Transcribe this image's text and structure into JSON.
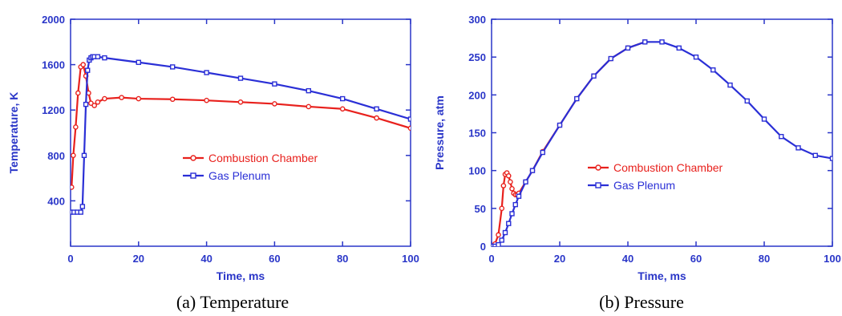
{
  "chart_data": [
    {
      "type": "line",
      "caption": "(a) Temperature",
      "xlabel": "Time, ms",
      "ylabel": "Temperature, K",
      "xlim": [
        0,
        100
      ],
      "ylim": [
        0,
        2000
      ],
      "xticks": [
        0,
        20,
        40,
        60,
        80,
        100
      ],
      "yticks": [
        400,
        800,
        1200,
        1600,
        2000
      ],
      "legend_position": "center",
      "series": [
        {
          "name": "Combustion Chamber",
          "color": "#e8211d",
          "marker": "circle",
          "x": [
            0.3,
            0.8,
            1.5,
            2.2,
            3,
            3.7,
            4.5,
            5.3,
            6,
            7,
            8,
            10,
            15,
            20,
            30,
            40,
            50,
            60,
            70,
            80,
            90,
            100
          ],
          "y": [
            520,
            800,
            1050,
            1350,
            1580,
            1600,
            1500,
            1350,
            1260,
            1240,
            1270,
            1300,
            1310,
            1300,
            1295,
            1285,
            1270,
            1255,
            1230,
            1210,
            1130,
            1040
          ]
        },
        {
          "name": "Gas Plenum",
          "color": "#2a2fd6",
          "marker": "square",
          "x": [
            0,
            1,
            2,
            3,
            3.5,
            4,
            4.5,
            5,
            5.5,
            6,
            6.5,
            7,
            8,
            10,
            20,
            30,
            40,
            50,
            60,
            70,
            80,
            90,
            100
          ],
          "y": [
            300,
            300,
            300,
            300,
            350,
            800,
            1250,
            1550,
            1640,
            1660,
            1670,
            1670,
            1670,
            1660,
            1620,
            1580,
            1530,
            1480,
            1430,
            1370,
            1300,
            1210,
            1120
          ]
        }
      ]
    },
    {
      "type": "line",
      "caption": "(b) Pressure",
      "xlabel": "Time, ms",
      "ylabel": "Pressure, atm",
      "xlim": [
        0,
        100
      ],
      "ylim": [
        0,
        300
      ],
      "xticks": [
        0,
        20,
        40,
        60,
        80,
        100
      ],
      "yticks": [
        0,
        50,
        100,
        150,
        200,
        250,
        300
      ],
      "legend_position": "center-right",
      "series": [
        {
          "name": "Combustion Chamber",
          "color": "#e8211d",
          "marker": "circle",
          "x": [
            0,
            1,
            2,
            3,
            3.5,
            4,
            4.5,
            5,
            5.5,
            6,
            6.5,
            7,
            7.5,
            8,
            10,
            12,
            15,
            20,
            25,
            30,
            35,
            40,
            45
          ],
          "y": [
            0,
            3,
            15,
            50,
            80,
            95,
            97,
            93,
            85,
            76,
            70,
            68,
            68,
            70,
            85,
            100,
            125,
            160,
            195,
            225,
            248,
            262,
            270
          ]
        },
        {
          "name": "Gas Plenum",
          "color": "#2a2fd6",
          "marker": "square",
          "x": [
            0,
            1,
            2,
            3,
            4,
            5,
            6,
            7,
            8,
            10,
            12,
            15,
            20,
            25,
            30,
            35,
            40,
            45,
            50,
            55,
            60,
            65,
            70,
            75,
            80,
            85,
            90,
            95,
            100
          ],
          "y": [
            0,
            0,
            2,
            8,
            18,
            30,
            43,
            55,
            66,
            85,
            100,
            124,
            160,
            195,
            225,
            248,
            262,
            270,
            270,
            262,
            250,
            233,
            213,
            192,
            168,
            145,
            130,
            120,
            116
          ]
        }
      ]
    }
  ]
}
